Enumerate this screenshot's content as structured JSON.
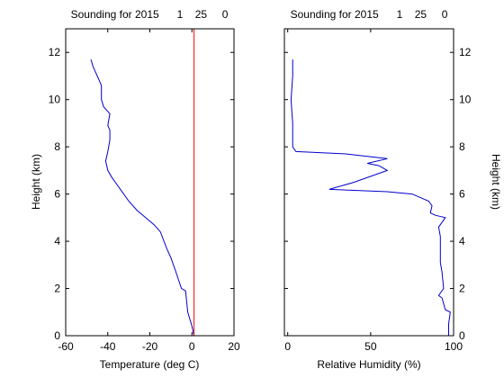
{
  "chart_data": [
    {
      "type": "line",
      "title": "Sounding for 2015      1    25     0",
      "xlabel": "Temperature (deg C)",
      "ylabel": "Height (km)",
      "xlim": [
        -60,
        20
      ],
      "ylim": [
        0,
        13
      ],
      "xticks": [
        "-60",
        "-40",
        "-20",
        "0",
        "20"
      ],
      "yticks": [
        "0",
        "2",
        "4",
        "6",
        "8",
        "10",
        "12"
      ],
      "series": [
        {
          "color": "#0000cc",
          "points": [
            [
              1,
              0.0
            ],
            [
              0,
              0.4
            ],
            [
              -2,
              1.0
            ],
            [
              -3,
              1.9
            ],
            [
              -5,
              2.0
            ],
            [
              -8,
              2.8
            ],
            [
              -10,
              3.3
            ],
            [
              -12,
              3.7
            ],
            [
              -15,
              4.4
            ],
            [
              -18,
              4.7
            ],
            [
              -22,
              5.0
            ],
            [
              -26,
              5.3
            ],
            [
              -30,
              5.7
            ],
            [
              -34,
              6.2
            ],
            [
              -38,
              6.7
            ],
            [
              -40,
              7.0
            ],
            [
              -41,
              7.4
            ],
            [
              -40,
              7.8
            ],
            [
              -39,
              8.3
            ],
            [
              -39,
              8.7
            ],
            [
              -40,
              8.9
            ],
            [
              -39,
              9.4
            ],
            [
              -41,
              9.6
            ],
            [
              -42,
              9.7
            ],
            [
              -43,
              10.0
            ],
            [
              -43,
              10.6
            ],
            [
              -44,
              10.8
            ],
            [
              -45,
              11.0
            ],
            [
              -46,
              11.2
            ],
            [
              -47,
              11.4
            ],
            [
              -48,
              11.7
            ]
          ]
        },
        {
          "color": "#ff0000",
          "points": [
            [
              1,
              0.0
            ],
            [
              1,
              13.0
            ]
          ]
        }
      ]
    },
    {
      "type": "line",
      "title": "Sounding for 2015      1    25     0",
      "xlabel": "Relative Humidity (%)",
      "ylabel": "Height (km)",
      "xlim": [
        -2,
        100
      ],
      "ylim": [
        0,
        13
      ],
      "xticks": [
        "0",
        "50",
        "100"
      ],
      "yticks": [
        "0",
        "2",
        "4",
        "6",
        "8",
        "10",
        "12"
      ],
      "series": [
        {
          "color": "#0000cc",
          "points": [
            [
              97,
              0.0
            ],
            [
              97,
              0.5
            ],
            [
              98,
              1.0
            ],
            [
              95,
              1.1
            ],
            [
              93,
              1.6
            ],
            [
              91,
              1.7
            ],
            [
              94,
              2.0
            ],
            [
              93,
              2.7
            ],
            [
              92,
              3.1
            ],
            [
              92,
              3.6
            ],
            [
              92,
              4.2
            ],
            [
              91,
              4.6
            ],
            [
              95,
              5.0
            ],
            [
              89,
              5.1
            ],
            [
              86,
              5.2
            ],
            [
              87,
              5.5
            ],
            [
              85,
              5.7
            ],
            [
              75,
              6.0
            ],
            [
              60,
              6.1
            ],
            [
              25,
              6.2
            ],
            [
              40,
              6.5
            ],
            [
              60,
              7.0
            ],
            [
              55,
              7.2
            ],
            [
              48,
              7.3
            ],
            [
              60,
              7.5
            ],
            [
              35,
              7.7
            ],
            [
              5,
              7.8
            ],
            [
              3,
              8.0
            ],
            [
              3,
              9.0
            ],
            [
              2,
              10.0
            ],
            [
              3,
              11.0
            ],
            [
              3,
              11.7
            ]
          ]
        }
      ]
    }
  ]
}
